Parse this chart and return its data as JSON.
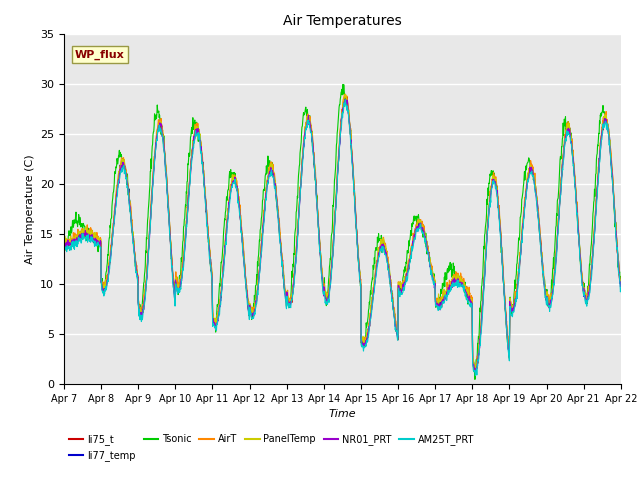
{
  "title": "Air Temperatures",
  "xlabel": "Time",
  "ylabel": "Air Temperature (C)",
  "ylim": [
    0,
    35
  ],
  "x_tick_labels": [
    "Apr 7",
    "Apr 8",
    "Apr 9",
    "Apr 10",
    "Apr 11",
    "Apr 12",
    "Apr 13",
    "Apr 14",
    "Apr 15",
    "Apr 16",
    "Apr 17",
    "Apr 18",
    "Apr 19",
    "Apr 20",
    "Apr 21",
    "Apr 22"
  ],
  "annotation_text": "WP_flux",
  "annotation_bg": "#ffffcc",
  "annotation_fg": "#880000",
  "background_color": "#e8e8e8",
  "plot_bg": "#e8e8e8",
  "series": [
    {
      "name": "li75_t",
      "color": "#cc0000"
    },
    {
      "name": "li77_temp",
      "color": "#0000cc"
    },
    {
      "name": "Tsonic",
      "color": "#00cc00"
    },
    {
      "name": "AirT",
      "color": "#ff8800"
    },
    {
      "name": "PanelTemp",
      "color": "#cccc00"
    },
    {
      "name": "NR01_PRT",
      "color": "#9900cc"
    },
    {
      "name": "AM25T_PRT",
      "color": "#00cccc"
    }
  ],
  "legend_ncol": 6,
  "legend_row2": [
    "AM25T_PRT"
  ],
  "figsize": [
    6.4,
    4.8
  ],
  "dpi": 100,
  "day_peaks": [
    15.0,
    22.0,
    26.0,
    25.5,
    20.5,
    21.5,
    26.5,
    28.5,
    14.0,
    16.0,
    10.5,
    20.5,
    21.5,
    25.5,
    26.5,
    27.5
  ],
  "day_troughs": [
    14.0,
    9.5,
    7.0,
    9.5,
    6.0,
    7.0,
    8.0,
    8.5,
    4.0,
    9.5,
    8.0,
    1.5,
    7.5,
    8.0,
    8.5,
    9.0
  ],
  "tsonic_extra_day": [
    2.0,
    3.5,
    4.5,
    3.5,
    3.0,
    3.0,
    4.0,
    4.5,
    2.5,
    2.0,
    2.0,
    3.5,
    3.5,
    3.5,
    4.0,
    4.5
  ]
}
